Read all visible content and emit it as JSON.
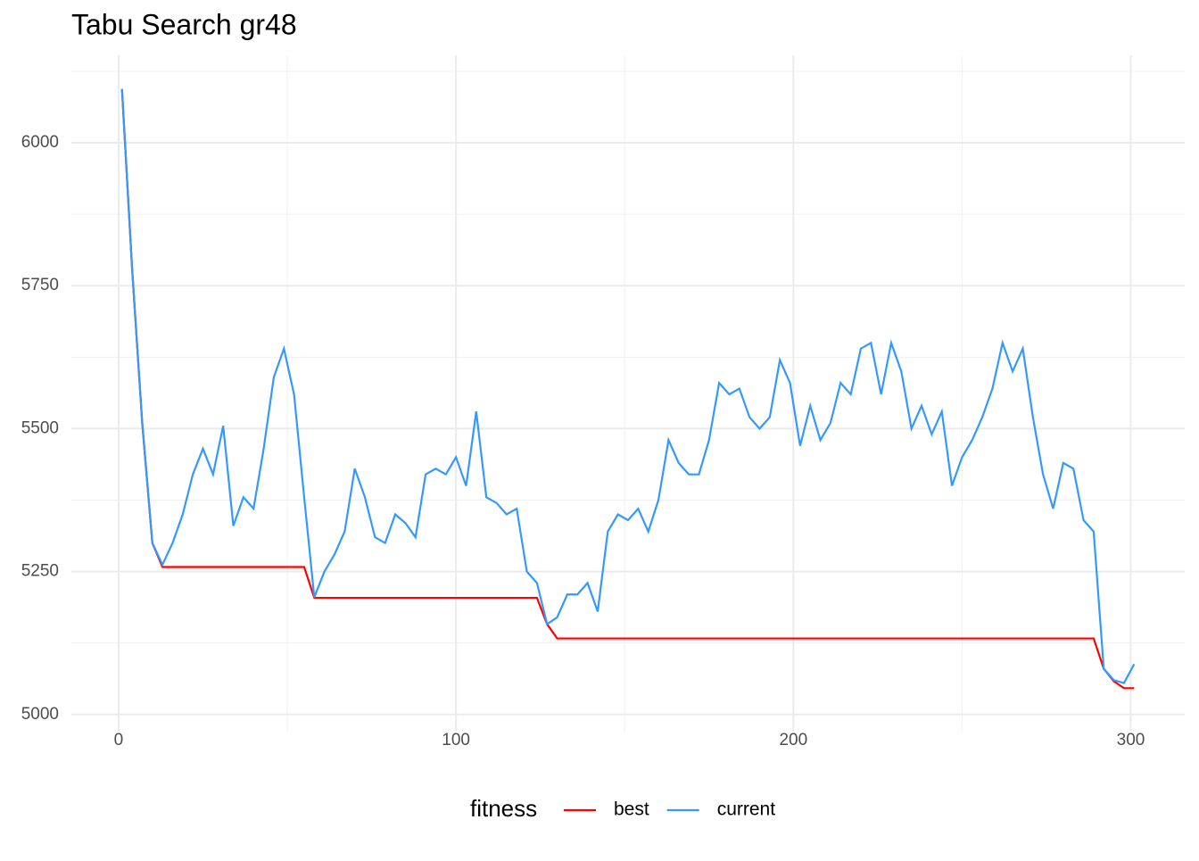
{
  "chart_data": {
    "type": "line",
    "title": "Tabu Search gr48",
    "legend_title": "fitness",
    "legend_position": "bottom",
    "grid": true,
    "minor_grid": true,
    "x": [
      1,
      4,
      7,
      10,
      13,
      16,
      19,
      22,
      25,
      28,
      31,
      34,
      37,
      40,
      43,
      46,
      49,
      52,
      55,
      58,
      61,
      64,
      67,
      70,
      73,
      76,
      79,
      82,
      85,
      88,
      91,
      94,
      97,
      100,
      103,
      106,
      109,
      112,
      115,
      118,
      121,
      124,
      127,
      130,
      133,
      136,
      139,
      142,
      145,
      148,
      151,
      154,
      157,
      160,
      163,
      166,
      169,
      172,
      175,
      178,
      181,
      184,
      187,
      190,
      193,
      196,
      199,
      202,
      205,
      208,
      211,
      214,
      217,
      220,
      223,
      226,
      229,
      232,
      235,
      238,
      241,
      244,
      247,
      250,
      253,
      256,
      259,
      262,
      265,
      268,
      271,
      274,
      277,
      280,
      283,
      286,
      289,
      292,
      295,
      298,
      301
    ],
    "series": [
      {
        "name": "best",
        "color": "#ff0000",
        "values": [
          6094,
          5780,
          5510,
          5300,
          5258,
          5258,
          5258,
          5258,
          5258,
          5258,
          5258,
          5258,
          5258,
          5258,
          5258,
          5258,
          5258,
          5258,
          5258,
          5204,
          5204,
          5204,
          5204,
          5204,
          5204,
          5204,
          5204,
          5204,
          5204,
          5204,
          5204,
          5204,
          5204,
          5204,
          5204,
          5204,
          5204,
          5204,
          5204,
          5204,
          5204,
          5204,
          5158,
          5133,
          5133,
          5133,
          5133,
          5133,
          5133,
          5133,
          5133,
          5133,
          5133,
          5133,
          5133,
          5133,
          5133,
          5133,
          5133,
          5133,
          5133,
          5133,
          5133,
          5133,
          5133,
          5133,
          5133,
          5133,
          5133,
          5133,
          5133,
          5133,
          5133,
          5133,
          5133,
          5133,
          5133,
          5133,
          5133,
          5133,
          5133,
          5133,
          5133,
          5133,
          5133,
          5133,
          5133,
          5133,
          5133,
          5133,
          5133,
          5133,
          5133,
          5133,
          5133,
          5133,
          5133,
          5080,
          5058,
          5046,
          5046
        ]
      },
      {
        "name": "current",
        "color": "#3399ff",
        "values": [
          6094,
          5780,
          5510,
          5300,
          5262,
          5300,
          5350,
          5420,
          5465,
          5420,
          5505,
          5330,
          5380,
          5360,
          5465,
          5590,
          5640,
          5560,
          5380,
          5205,
          5250,
          5280,
          5320,
          5430,
          5380,
          5310,
          5300,
          5350,
          5335,
          5310,
          5420,
          5430,
          5420,
          5450,
          5400,
          5530,
          5380,
          5370,
          5350,
          5360,
          5250,
          5230,
          5158,
          5170,
          5210,
          5210,
          5230,
          5180,
          5320,
          5350,
          5340,
          5360,
          5320,
          5375,
          5480,
          5440,
          5420,
          5420,
          5480,
          5580,
          5560,
          5570,
          5520,
          5500,
          5520,
          5620,
          5580,
          5470,
          5540,
          5480,
          5510,
          5580,
          5560,
          5640,
          5650,
          5560,
          5650,
          5600,
          5500,
          5540,
          5490,
          5530,
          5400,
          5450,
          5480,
          5520,
          5570,
          5650,
          5600,
          5640,
          5520,
          5420,
          5360,
          5440,
          5430,
          5340,
          5320,
          5080,
          5060,
          5055,
          5088
        ]
      }
    ],
    "xlim": [
      -14,
      316
    ],
    "xticks": [
      0,
      100,
      200,
      300
    ],
    "ylim": [
      4970,
      6153
    ],
    "yticks": [
      5000,
      5250,
      5500,
      5750,
      6000
    ]
  }
}
